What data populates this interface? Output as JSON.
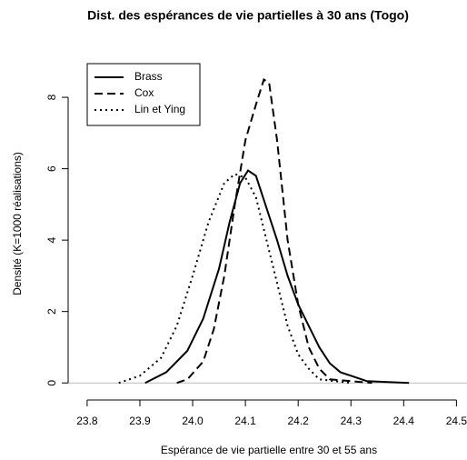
{
  "chart_data": {
    "type": "line",
    "title": "Dist. des espérances de vie partielles à 30 ans (Togo)",
    "x_label": "Espérance de vie partielle entre 30 et 55 ans",
    "y_label": "Densité (K=1000 réalisations)",
    "xlim": [
      23.764,
      24.52
    ],
    "ylim": [
      -0.3,
      9.3
    ],
    "xticks": [
      23.8,
      23.9,
      {
        "value": 24.0,
        "label": "24.0"
      },
      24.1,
      24.2,
      24.3,
      24.4,
      24.5
    ],
    "yticks": [
      0,
      2,
      4,
      6,
      8
    ],
    "legend": "top-left",
    "series": [
      {
        "name": "Brass",
        "color": "#000000",
        "dash": "solid",
        "x": [
          23.91,
          23.95,
          23.99,
          24.02,
          24.05,
          24.07,
          24.09,
          24.105,
          24.12,
          24.14,
          24.16,
          24.18,
          24.2,
          24.22,
          24.24,
          24.26,
          24.28,
          24.3,
          24.33,
          24.41
        ],
        "values": [
          0,
          0.3,
          0.9,
          1.8,
          3.2,
          4.5,
          5.6,
          5.95,
          5.8,
          4.9,
          4.0,
          3.0,
          2.2,
          1.6,
          1.0,
          0.55,
          0.3,
          0.2,
          0.05,
          0
        ]
      },
      {
        "name": "Cox",
        "color": "#000000",
        "dash": "dashed",
        "x": [
          23.97,
          23.99,
          24.02,
          24.04,
          24.06,
          24.08,
          24.1,
          24.12,
          24.135,
          24.145,
          24.16,
          24.18,
          24.2,
          24.22,
          24.24,
          24.26,
          24.3,
          24.34
        ],
        "values": [
          0,
          0.1,
          0.6,
          1.5,
          3.0,
          5.0,
          6.8,
          7.8,
          8.5,
          8.4,
          6.8,
          4.0,
          2.2,
          1.0,
          0.4,
          0.1,
          0.05,
          0
        ]
      },
      {
        "name": "Lin et Ying",
        "color": "#000000",
        "dash": "dotted",
        "x": [
          23.86,
          23.9,
          23.94,
          23.97,
          24.0,
          24.03,
          24.06,
          24.08,
          24.1,
          24.12,
          24.14,
          24.16,
          24.18,
          24.2,
          24.22,
          24.24,
          24.3
        ],
        "values": [
          0,
          0.2,
          0.7,
          1.6,
          3.0,
          4.5,
          5.6,
          5.85,
          5.75,
          5.2,
          4.0,
          2.8,
          1.6,
          0.8,
          0.4,
          0.1,
          0
        ]
      }
    ]
  }
}
